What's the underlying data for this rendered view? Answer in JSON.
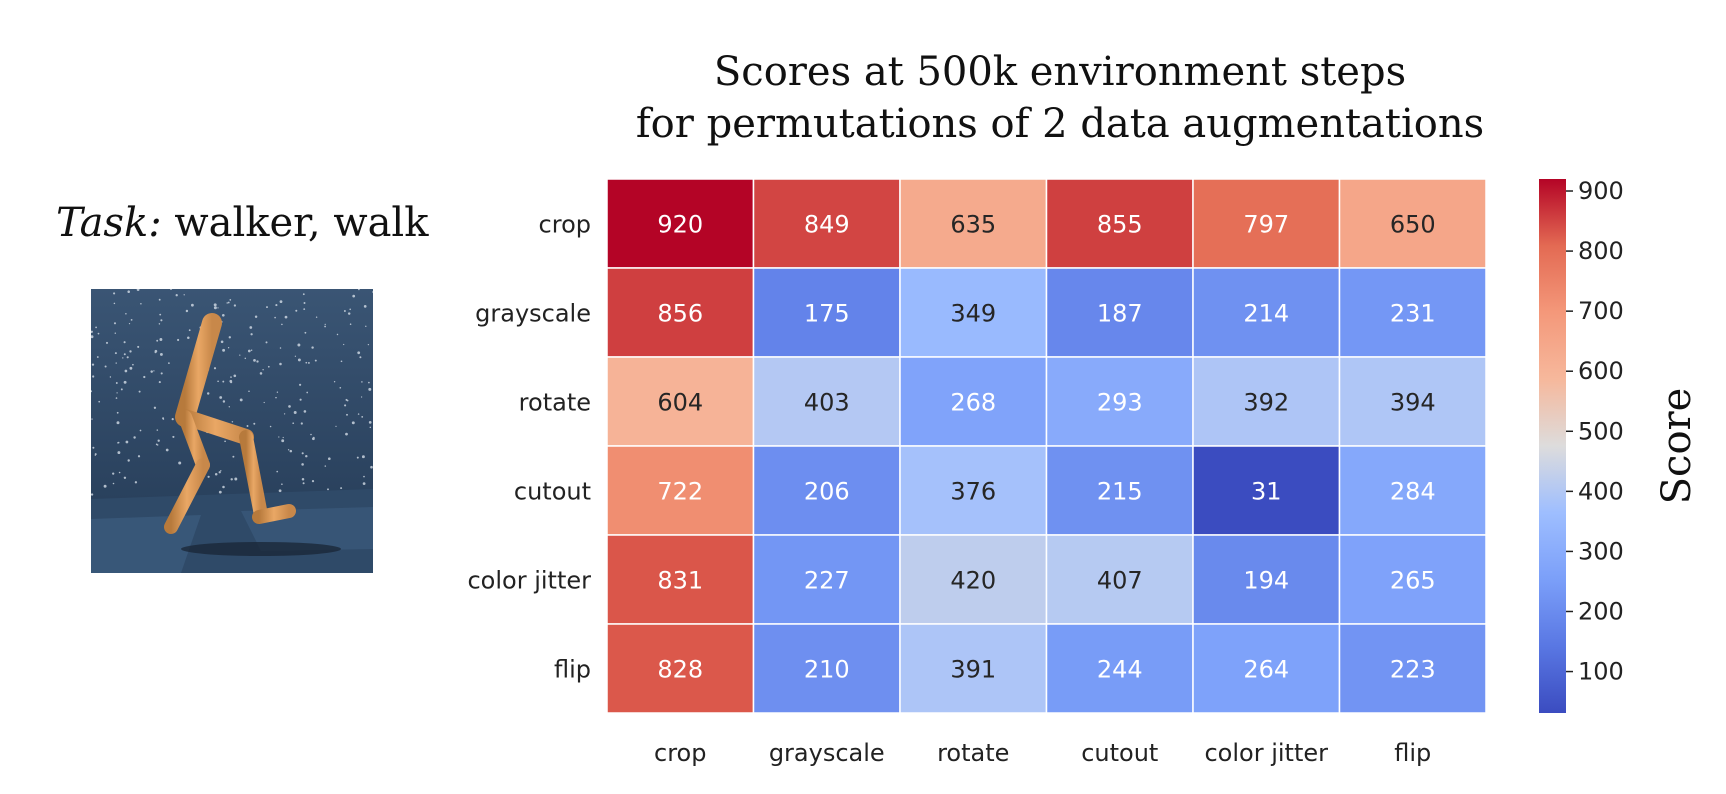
{
  "task": {
    "label": "Task:",
    "value": " walker, walk"
  },
  "chart_data": {
    "type": "heatmap",
    "title": "Scores at 500k environment steps",
    "subtitle": "for permutations of 2 data augmentations",
    "rows": [
      "crop",
      "grayscale",
      "rotate",
      "cutout",
      "color jitter",
      "flip"
    ],
    "columns": [
      "crop",
      "grayscale",
      "rotate",
      "cutout",
      "color jitter",
      "flip"
    ],
    "values": [
      [
        920,
        849,
        635,
        855,
        797,
        650
      ],
      [
        856,
        175,
        349,
        187,
        214,
        231
      ],
      [
        604,
        403,
        268,
        293,
        392,
        394
      ],
      [
        722,
        206,
        376,
        215,
        31,
        284
      ],
      [
        831,
        227,
        420,
        407,
        194,
        265
      ],
      [
        828,
        210,
        391,
        244,
        264,
        223
      ]
    ],
    "colormap": "coolwarm",
    "vmin": 31,
    "vmax": 920,
    "colorbar": {
      "label": "Score",
      "ticks": [
        100,
        200,
        300,
        400,
        500,
        600,
        700,
        800,
        900
      ]
    }
  }
}
